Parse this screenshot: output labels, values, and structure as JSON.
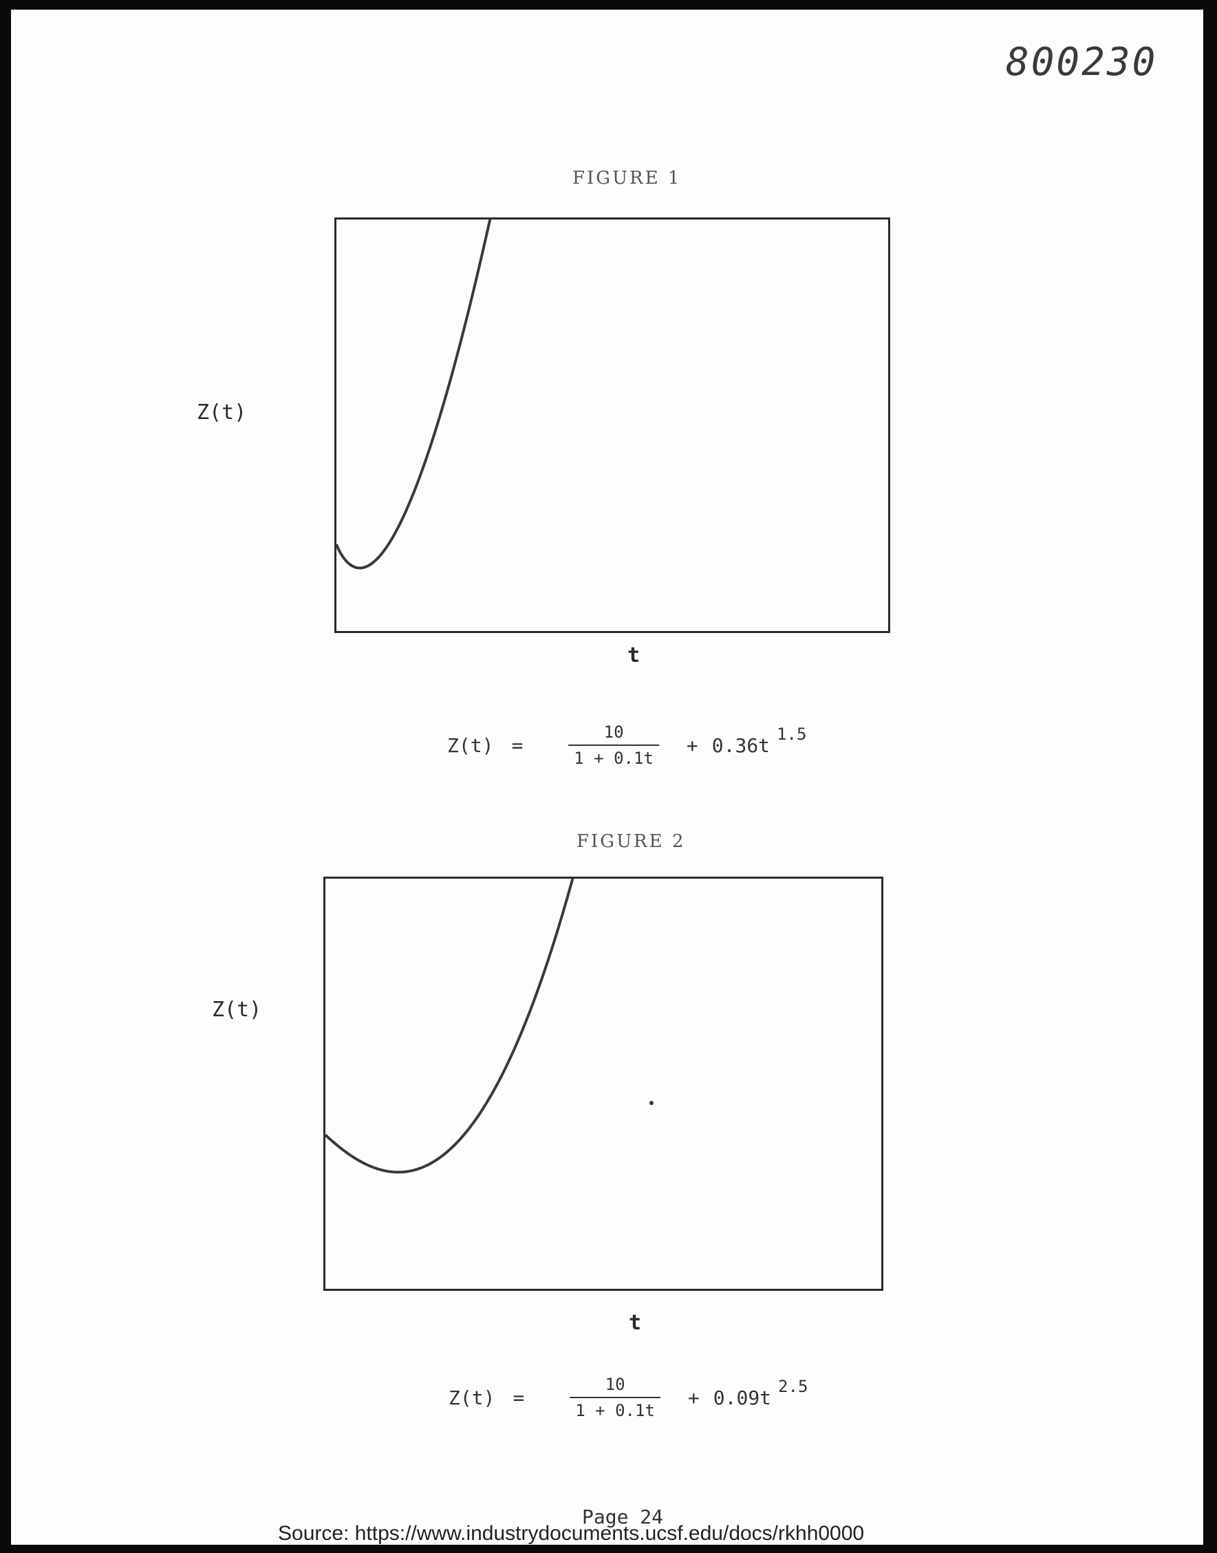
{
  "document": {
    "number": "800230",
    "page": "Page 24",
    "source": "Source: https://www.industrydocuments.ucsf.edu/docs/rkhh0000"
  },
  "figures": [
    {
      "title": "FIGURE 1",
      "ylabel": "Z(t)",
      "xlabel": "t",
      "formula": {
        "lhs": "Z(t)",
        "eq": "=",
        "numerator": "10",
        "denominator": "1 + 0.1t",
        "plus": "+",
        "term": "0.36t",
        "exponent": "1.5"
      }
    },
    {
      "title": "FIGURE 2",
      "ylabel": "Z(t)",
      "xlabel": "t",
      "formula": {
        "lhs": "Z(t)",
        "eq": "=",
        "numerator": "10",
        "denominator": "1 + 0.1t",
        "plus": "+",
        "term": "0.09t",
        "exponent": "2.5"
      }
    }
  ],
  "chart_data": [
    {
      "type": "line",
      "title": "FIGURE 1",
      "xlabel": "t",
      "ylabel": "Z(t)",
      "curve": {
        "a": 10,
        "b": 0.1,
        "c": 0.36,
        "p": 1.5
      },
      "xlim": [
        0,
        42
      ],
      "ylim": [
        7.6,
        19
      ],
      "grid": false
    },
    {
      "type": "line",
      "title": "FIGURE 2",
      "xlabel": "t",
      "ylabel": "Z(t)",
      "curve": {
        "a": 10,
        "b": 0.1,
        "c": 0.09,
        "p": 2.5
      },
      "xlim": [
        0,
        16
      ],
      "ylim": [
        5.2,
        18
      ],
      "grid": false
    }
  ],
  "colors": {
    "ink": "#2a2a2a",
    "curve": "#3a3a3a",
    "frame": "#0a0a0a"
  }
}
